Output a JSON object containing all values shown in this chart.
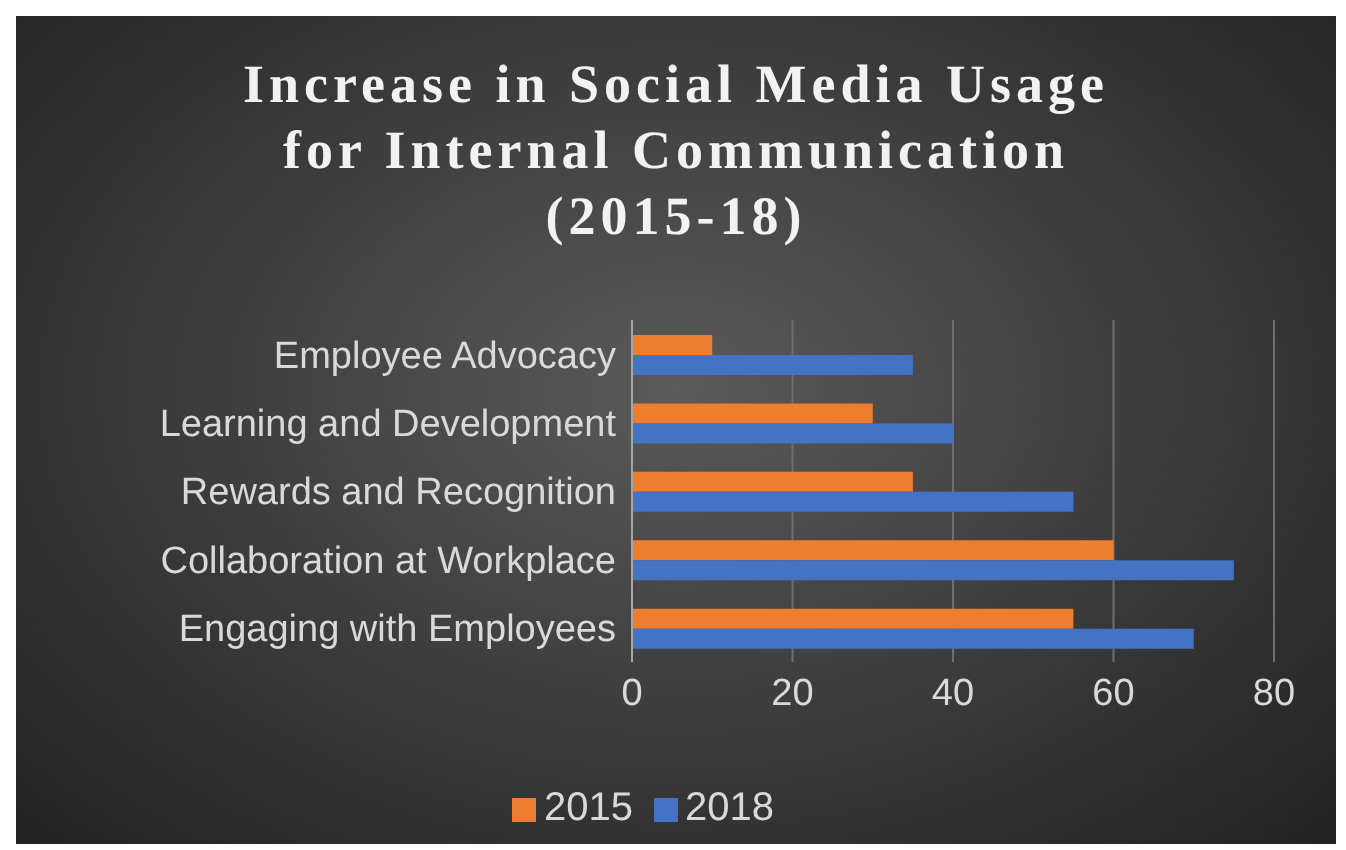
{
  "chart_data": {
    "type": "bar",
    "orientation": "horizontal",
    "title": "Increase in Social Media Usage\nfor Internal Communication\n(2015-18)",
    "categories": [
      "Employee Advocacy",
      "Learning and Development",
      "Rewards and Recognition ",
      "Collaboration at Workplace",
      "Engaging with Employees"
    ],
    "series": [
      {
        "name": "2015",
        "color": "#ed7d31",
        "values": [
          10,
          30,
          35,
          60,
          55
        ]
      },
      {
        "name": "2018",
        "color": "#4472c4",
        "values": [
          35,
          40,
          55,
          75,
          70
        ]
      }
    ],
    "xlim": [
      0,
      80
    ],
    "xticks": [
      0,
      20,
      40,
      60,
      80
    ],
    "grid": "x",
    "legend": "bottom"
  }
}
